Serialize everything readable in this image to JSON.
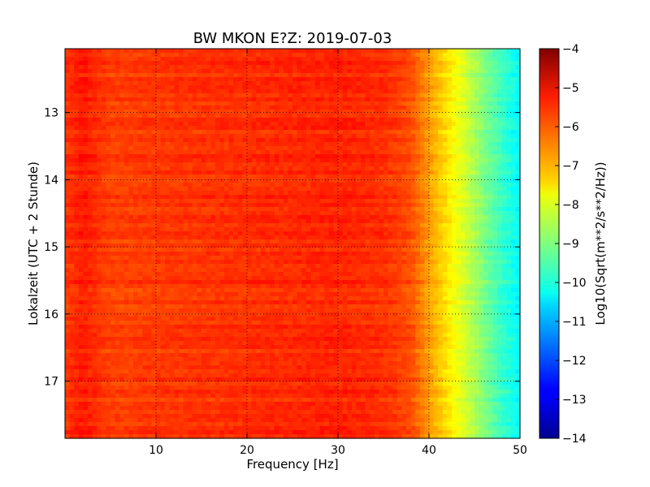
{
  "chart_data": {
    "type": "heatmap",
    "title": "BW MKON E?Z: 2019-07-03",
    "xlabel": "Frequency [Hz]",
    "ylabel": "Lokalzeit (UTC + 2 Stunde)",
    "xlim": [
      0,
      50
    ],
    "ylim": [
      17.85,
      12.05
    ],
    "x_ticks": [
      10,
      20,
      30,
      40,
      50
    ],
    "y_ticks": [
      13,
      14,
      15,
      16,
      17
    ],
    "x_tick_labels": [
      "10",
      "20",
      "30",
      "40",
      "50"
    ],
    "y_tick_labels": [
      "13",
      "14",
      "15",
      "16",
      "17"
    ],
    "grid": true,
    "colorbar": {
      "label": "Log10(Sqrt(m**2/s**2/Hz))",
      "range": [
        -14,
        -4
      ],
      "ticks": [
        -4,
        -5,
        -6,
        -7,
        -8,
        -9,
        -10,
        -11,
        -12,
        -13,
        -14
      ],
      "tick_labels": [
        "−4",
        "−5",
        "−6",
        "−7",
        "−8",
        "−9",
        "−10",
        "−11",
        "−12",
        "−13",
        "−14"
      ],
      "colormap": "jet"
    },
    "spectrum_profile": {
      "frequency": [
        0,
        2,
        5,
        10,
        20,
        30,
        35,
        38,
        40,
        42,
        44,
        46,
        48,
        50
      ],
      "log10_amplitude": [
        -5.8,
        -5.5,
        -5.9,
        -5.8,
        -5.7,
        -5.6,
        -5.7,
        -6.0,
        -6.8,
        -7.5,
        -8.2,
        -9.0,
        -9.7,
        -10.3
      ]
    }
  }
}
